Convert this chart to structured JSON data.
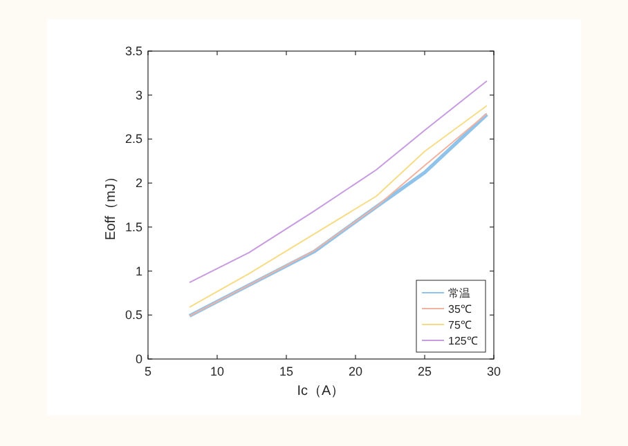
{
  "chart_data": {
    "type": "line",
    "xlabel": "Ic（A）",
    "ylabel": "Eoff（mJ）",
    "xlim": [
      5,
      30
    ],
    "ylim": [
      0,
      3.5
    ],
    "xticks": [
      5,
      10,
      15,
      20,
      25,
      30
    ],
    "yticks": [
      0,
      0.5,
      1,
      1.5,
      2,
      2.5,
      3,
      3.5
    ],
    "legend": "bottom right",
    "grid": false,
    "marker": "none",
    "line_style": "solid",
    "series": [
      {
        "name": "常温",
        "color": "#8fc3ea",
        "x": [
          8,
          12.3,
          17,
          21.5,
          25,
          29.5
        ],
        "values": [
          0.49,
          0.84,
          1.22,
          1.73,
          2.12,
          2.78
        ]
      },
      {
        "name": "35℃",
        "color": "#f2b2a0",
        "x": [
          8,
          12.3,
          17,
          21.5,
          25,
          29.5
        ],
        "values": [
          0.49,
          0.84,
          1.23,
          1.73,
          2.2,
          2.79
        ]
      },
      {
        "name": "75℃",
        "color": "#f7dc86",
        "x": [
          8,
          12.3,
          17,
          21.5,
          25,
          29.5
        ],
        "values": [
          0.59,
          0.97,
          1.42,
          1.85,
          2.36,
          2.88
        ]
      },
      {
        "name": "125℃",
        "color": "#c79be0",
        "x": [
          8,
          12.3,
          17,
          21.5,
          25,
          29.5
        ],
        "values": [
          0.87,
          1.21,
          1.68,
          2.15,
          2.6,
          3.16
        ]
      }
    ]
  }
}
